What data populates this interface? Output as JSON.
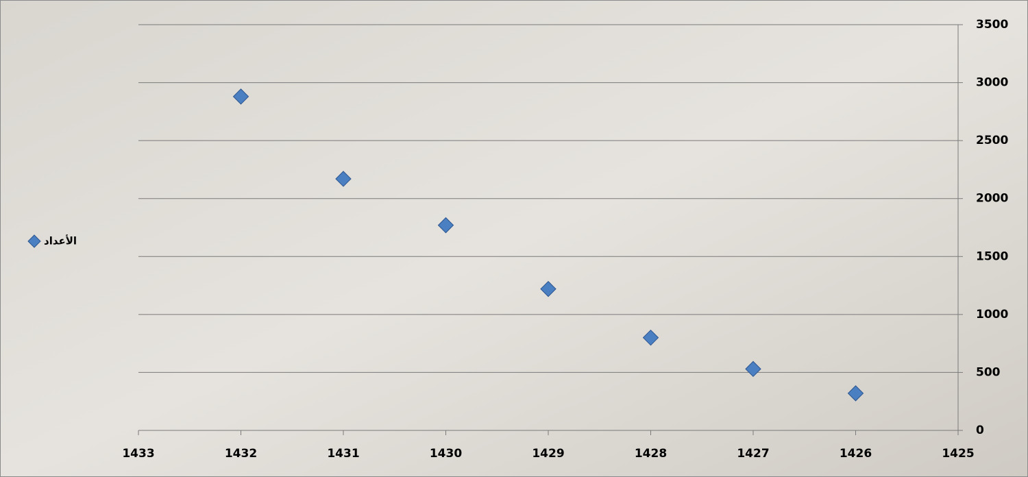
{
  "chart_data": {
    "type": "scatter",
    "series": [
      {
        "name": "الأعداد",
        "color": "#4a7fc1",
        "x": [
          1432,
          1431,
          1430,
          1429,
          1428,
          1427,
          1426
        ],
        "values": [
          2880,
          2170,
          1770,
          1220,
          800,
          530,
          320
        ]
      }
    ],
    "xlim": [
      1433,
      1425
    ],
    "xticks": [
      1433,
      1432,
      1431,
      1430,
      1429,
      1428,
      1427,
      1426,
      1425
    ],
    "ylim": [
      0,
      3500
    ],
    "yticks": [
      0,
      500,
      1000,
      1500,
      2000,
      2500,
      3000,
      3500
    ],
    "grid": true,
    "legend": "left",
    "y_axis_side": "right"
  }
}
